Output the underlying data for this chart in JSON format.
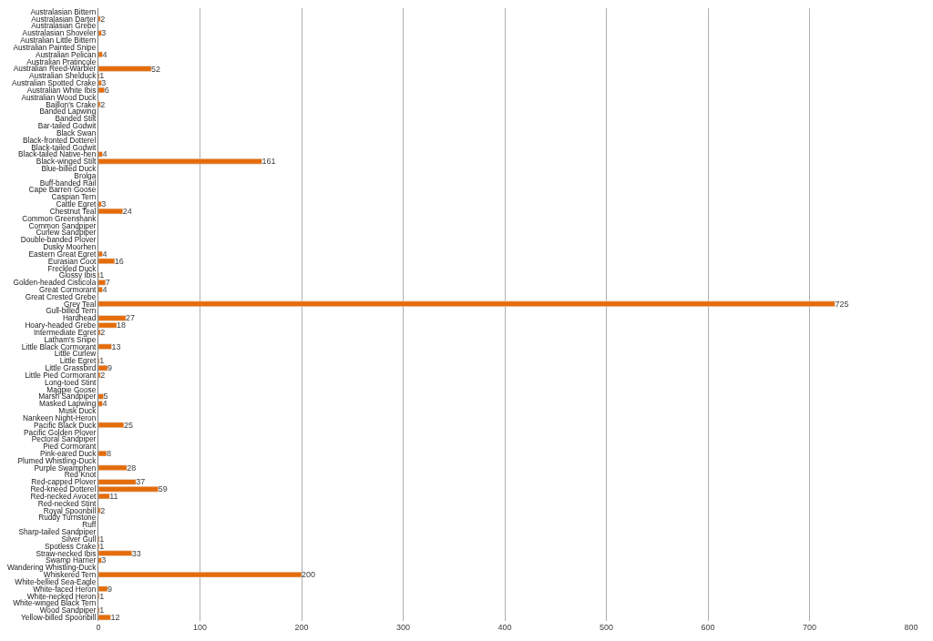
{
  "chart_data": {
    "type": "bar",
    "orientation": "horizontal",
    "color": "#e46c0a",
    "data_labels": true,
    "grid": "x",
    "legend": false,
    "categories": [
      "Australasian Bittern",
      "Australasian Darter",
      "Australasian Grebe",
      "Australasian Shoveler",
      "Australian Little Bittern",
      "Australian Painted Snipe",
      "Australian Pelican",
      "Australian Pratincole",
      "Australian Reed-Warbler",
      "Australian Shelduck",
      "Australian Spotted Crake",
      "Australian White Ibis",
      "Australian Wood Duck",
      "Baillon's Crake",
      "Banded Lapwing",
      "Banded Stilt",
      "Bar-tailed Godwit",
      "Black Swan",
      "Black-fronted Dotterel",
      "Black-tailed Godwit",
      "Black-tailed Native-hen",
      "Black-winged Stilt",
      "Blue-billed Duck",
      "Brolga",
      "Buff-banded Rail",
      "Cape Barren Goose",
      "Caspian Tern",
      "Cattle Egret",
      "Chestnut Teal",
      "Common Greenshank",
      "Common Sandpiper",
      "Curlew Sandpiper",
      "Double-banded Plover",
      "Dusky Moorhen",
      "Eastern Great Egret",
      "Eurasian Coot",
      "Freckled Duck",
      "Glossy Ibis",
      "Golden-headed Cisticola",
      "Great Cormorant",
      "Great Crested Grebe",
      "Grey Teal",
      "Gull-billed Tern",
      "Hardhead",
      "Hoary-headed Grebe",
      "Intermediate Egret",
      "Latham's Snipe",
      "Little Black Cormorant",
      "Little Curlew",
      "Little Egret",
      "Little Grassbird",
      "Little Pied Cormorant",
      "Long-toed Stint",
      "Magpie Goose",
      "Marsh Sandpiper",
      "Masked Lapwing",
      "Musk Duck",
      "Nankeen Night-Heron",
      "Pacific Black Duck",
      "Pacific Golden Plover",
      "Pectoral Sandpiper",
      "Pied Cormorant",
      "Pink-eared Duck",
      "Plumed Whistling-Duck",
      "Purple Swamphen",
      "Red Knot",
      "Red-capped Plover",
      "Red-kneed Dotterel",
      "Red-necked Avocet",
      "Red-necked Stint",
      "Royal Spoonbill",
      "Ruddy Turnstone",
      "Ruff",
      "Sharp-tailed Sandpiper",
      "Silver Gull",
      "Spotless Crake",
      "Straw-necked Ibis",
      "Swamp Harrier",
      "Wandering Whistling-Duck",
      "Whiskered Tern",
      "White-bellied Sea-Eagle",
      "White-faced Heron",
      "White-necked Heron",
      "White-winged Black Tern",
      "Wood Sandpiper",
      "Yellow-billed Spoonbill"
    ],
    "values": [
      null,
      2,
      null,
      3,
      null,
      null,
      4,
      null,
      52,
      1,
      3,
      6,
      null,
      2,
      null,
      null,
      null,
      null,
      null,
      null,
      4,
      161,
      null,
      null,
      null,
      null,
      null,
      3,
      24,
      null,
      null,
      null,
      null,
      null,
      4,
      16,
      null,
      1,
      7,
      4,
      null,
      725,
      null,
      27,
      18,
      2,
      null,
      13,
      null,
      1,
      9,
      2,
      null,
      null,
      5,
      4,
      null,
      null,
      25,
      null,
      null,
      null,
      8,
      null,
      28,
      null,
      37,
      59,
      11,
      null,
      2,
      null,
      null,
      null,
      1,
      1,
      33,
      3,
      null,
      200,
      null,
      9,
      1,
      null,
      1,
      12
    ],
    "xlim": [
      0,
      800
    ],
    "xticks": [
      0,
      100,
      200,
      300,
      400,
      500,
      600,
      700,
      800
    ]
  }
}
